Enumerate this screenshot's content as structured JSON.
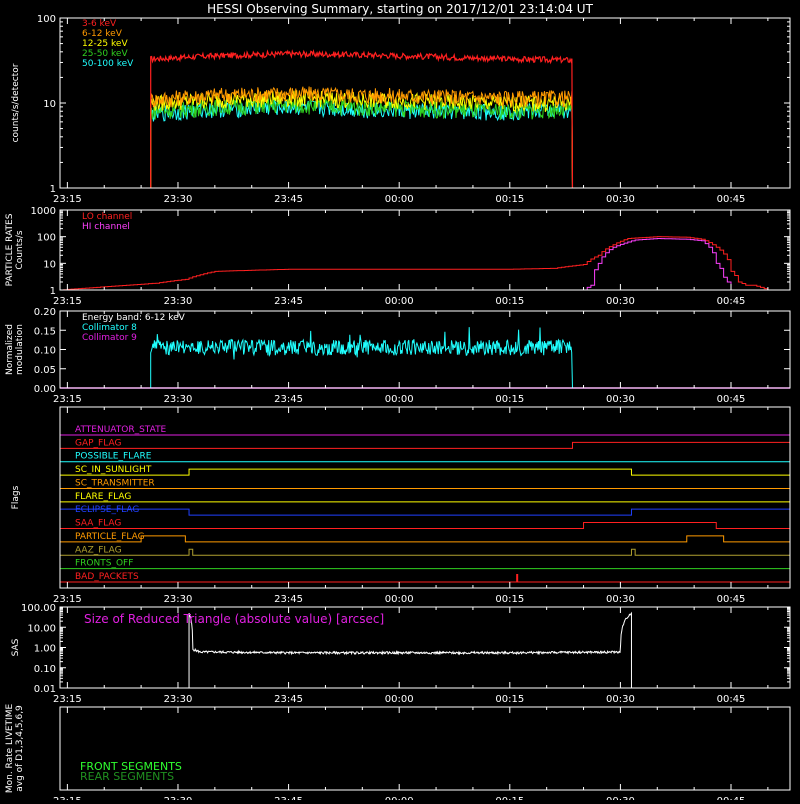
{
  "title": "HESSI Observing Summary, starting on 2017/12/01 23:14:04 UT",
  "colors": {
    "background": "#000000",
    "axes": "#ffffff",
    "red": "#ff2020",
    "orange": "#ff9a00",
    "yellow": "#ffff00",
    "green": "#30d020",
    "cyan": "#20ffff",
    "magenta": "#e020e0",
    "blue": "#2040ff",
    "olive": "#b0a030"
  },
  "time_axis": {
    "start_minutes": -1,
    "end_minutes": 98,
    "tick_minutes": [
      0,
      15,
      30,
      45,
      60,
      75,
      90
    ],
    "tick_labels": [
      "23:15",
      "23:30",
      "23:45",
      "00:00",
      "00:15",
      "00:30",
      "00:45"
    ]
  },
  "chart_data": [
    {
      "id": "counts",
      "type": "line",
      "ylabel": "counts/s/detector",
      "yscale": "log",
      "ylim": [
        1,
        100
      ],
      "ytick_values": [
        1,
        10,
        100
      ],
      "ytick_labels": [
        "1",
        "10",
        "100"
      ],
      "legend_placement": "top-left",
      "data_window_minutes": [
        11.3,
        68.5
      ],
      "series": [
        {
          "name": "3-6 keV",
          "color": "#ff2020",
          "x_minutes": [
            11.3,
            20,
            30,
            40,
            50,
            60,
            68.5
          ],
          "values": [
            33,
            36,
            38,
            37,
            35,
            33,
            32
          ]
        },
        {
          "name": "6-12 keV",
          "color": "#ff9a00",
          "x_minutes": [
            11.3,
            20,
            30,
            40,
            50,
            60,
            68.5
          ],
          "values": [
            11,
            12.5,
            13,
            12.5,
            12,
            11.5,
            11.5
          ]
        },
        {
          "name": "12-25 keV",
          "color": "#ffff00",
          "x_minutes": [
            11.3,
            20,
            30,
            40,
            50,
            60,
            68.5
          ],
          "values": [
            10,
            11,
            11.5,
            11,
            10.5,
            10,
            10
          ]
        },
        {
          "name": "25-50 keV",
          "color": "#30d020",
          "x_minutes": [
            11.3,
            20,
            30,
            40,
            50,
            60,
            68.5
          ],
          "values": [
            8,
            9,
            9.5,
            9,
            8.5,
            8,
            8.5
          ]
        },
        {
          "name": "50-100 keV",
          "color": "#20ffff",
          "x_minutes": [
            11.3,
            20,
            30,
            40,
            50,
            60,
            68.5
          ],
          "values": [
            7.5,
            8.5,
            9,
            8.5,
            8,
            8,
            8.5
          ]
        }
      ]
    },
    {
      "id": "particle",
      "type": "line",
      "ylabel": "PARTICLE RATES\nCounts/s",
      "yscale": "log",
      "ylim": [
        1,
        1000
      ],
      "ytick_values": [
        1,
        10,
        100,
        1000
      ],
      "ytick_labels": [
        "1",
        "10",
        "100",
        "1000"
      ],
      "legend_placement": "top-left",
      "series": [
        {
          "name": "LO channel",
          "color": "#ff2020",
          "x_minutes": [
            -1,
            3,
            8,
            12,
            16,
            20,
            30,
            45,
            60,
            66,
            70,
            72,
            74,
            76,
            80,
            84,
            86,
            88,
            90,
            91,
            92,
            93,
            95,
            98
          ],
          "values": [
            1,
            1.2,
            1.5,
            1.8,
            2.5,
            5,
            6,
            6,
            6,
            6.5,
            9,
            20,
            50,
            85,
            100,
            95,
            80,
            40,
            5,
            2,
            1.5,
            1.5,
            1,
            1
          ]
        },
        {
          "name": "HI channel",
          "color": "#ff40ff",
          "x_minutes": [
            -1,
            68,
            70,
            71,
            72,
            74,
            77,
            80,
            84,
            86,
            87,
            88,
            89,
            90,
            98
          ],
          "values": [
            1,
            1,
            1,
            1.5,
            10,
            40,
            75,
            85,
            80,
            70,
            40,
            10,
            3,
            1,
            1
          ]
        }
      ]
    },
    {
      "id": "modulation",
      "type": "line",
      "ylabel": "Normalized\nmodulation",
      "yscale": "linear",
      "ylim": [
        0,
        0.2
      ],
      "ytick_values": [
        0,
        0.05,
        0.1,
        0.15,
        0.2
      ],
      "ytick_labels": [
        "0.00",
        "0.05",
        "0.10",
        "0.15",
        "0.20"
      ],
      "legend_title": "Energy band: 6-12 keV",
      "legend_placement": "top-left",
      "series": [
        {
          "name": "Collimator 8",
          "color": "#20ffff",
          "x_minutes": [
            11.3,
            68.5
          ],
          "values": [
            0.105,
            0.105
          ]
        },
        {
          "name": "Collimator 9",
          "color": "#e020e0",
          "x_minutes": [
            -1,
            98
          ],
          "values": [
            0,
            0
          ]
        }
      ]
    },
    {
      "id": "flags",
      "type": "line",
      "ylabel": "Flags",
      "flags": [
        {
          "name": "ATTENUATOR_STATE",
          "color": "#e020e0",
          "steps": [
            [
              -1,
              0
            ],
            [
              98,
              0
            ]
          ]
        },
        {
          "name": "GAP_FLAG",
          "color": "#ff2020",
          "steps": [
            [
              -1,
              0
            ],
            [
              68.5,
              1
            ],
            [
              98,
              1
            ]
          ]
        },
        {
          "name": "POSSIBLE_FLARE",
          "color": "#20ffff",
          "steps": [
            [
              -1,
              0
            ],
            [
              98,
              0
            ]
          ]
        },
        {
          "name": "SC_IN_SUNLIGHT",
          "color": "#ffff00",
          "steps": [
            [
              -1,
              0
            ],
            [
              16.5,
              1
            ],
            [
              76.5,
              0
            ],
            [
              98,
              0
            ]
          ]
        },
        {
          "name": "SC_TRANSMITTER",
          "color": "#ff9a00",
          "steps": [
            [
              -1,
              0
            ],
            [
              98,
              0
            ]
          ]
        },
        {
          "name": "FLARE_FLAG",
          "color": "#ffff00",
          "steps": [
            [
              -1,
              0
            ],
            [
              98,
              0
            ]
          ]
        },
        {
          "name": "ECLIPSE_FLAG",
          "color": "#2040ff",
          "steps": [
            [
              -1,
              1
            ],
            [
              16.5,
              0
            ],
            [
              76.5,
              1
            ],
            [
              98,
              1
            ]
          ]
        },
        {
          "name": "SAA_FLAG",
          "color": "#ff2020",
          "steps": [
            [
              -1,
              0
            ],
            [
              70,
              1
            ],
            [
              88,
              0
            ],
            [
              98,
              0
            ]
          ]
        },
        {
          "name": "PARTICLE_FLAG",
          "color": "#ff9a00",
          "steps": [
            [
              -1,
              0
            ],
            [
              10,
              1
            ],
            [
              16,
              0
            ],
            [
              84,
              1
            ],
            [
              89,
              0
            ],
            [
              98,
              0
            ]
          ]
        },
        {
          "name": "AAZ_FLAG",
          "color": "#b0a030",
          "steps": [
            [
              -1,
              0
            ],
            [
              16.5,
              1
            ],
            [
              17,
              0
            ],
            [
              76.5,
              1
            ],
            [
              77,
              0
            ],
            [
              98,
              0
            ]
          ]
        },
        {
          "name": "FRONTS_OFF",
          "color": "#30d020",
          "steps": [
            [
              -1,
              0
            ],
            [
              98,
              0
            ]
          ]
        },
        {
          "name": "BAD_PACKETS",
          "color": "#ff2020",
          "steps": [
            [
              -1,
              0
            ],
            [
              98,
              0
            ]
          ],
          "spike_minutes": [
            61
          ]
        }
      ]
    },
    {
      "id": "sas",
      "type": "line",
      "ylabel": "SAS",
      "yscale": "log",
      "ylim": [
        0.01,
        100
      ],
      "ytick_values": [
        0.01,
        0.1,
        1,
        10,
        100
      ],
      "ytick_labels": [
        "0.01",
        "0.10",
        "1.00",
        "10.00",
        "100.00"
      ],
      "annotation": "Size of Reduced Triangle (absolute value) [arcsec]",
      "series": [
        {
          "name": "",
          "color": "#ffffff",
          "x_minutes": [
            16.5,
            17,
            18,
            20,
            30,
            45,
            60,
            75,
            76.5
          ],
          "values": [
            50,
            0.8,
            0.6,
            0.6,
            0.55,
            0.55,
            0.55,
            0.6,
            50
          ]
        }
      ]
    },
    {
      "id": "livetime",
      "type": "line",
      "ylabel": "Mon. Rate LIVETIME\navg of D1,3,4,5,6,9",
      "legend_placement": "bottom-left",
      "series": [
        {
          "name": "FRONT SEGMENTS",
          "color": "#30ff30",
          "x_minutes": [],
          "values": []
        },
        {
          "name": "REAR SEGMENTS",
          "color": "#209020",
          "x_minutes": [],
          "values": []
        }
      ]
    }
  ]
}
